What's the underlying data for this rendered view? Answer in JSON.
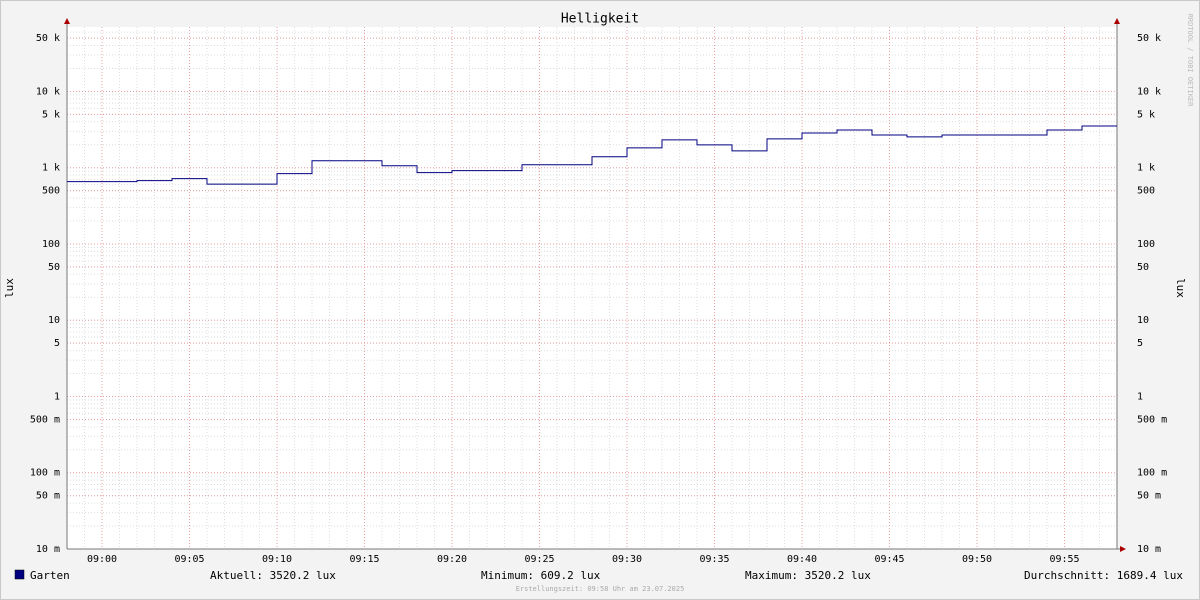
{
  "chart_data": {
    "type": "step",
    "title": "Helligkeit",
    "y_label": "lux",
    "unit": "lux",
    "watermark": "RRDTOOL / TOBI OETIKER",
    "footer": "Erstellungszeit: 09:58 Uhr am 23.07.2025",
    "x": [
      "08:58",
      "09:02",
      "09:04",
      "09:06",
      "09:10",
      "09:12",
      "09:16",
      "09:18",
      "09:20",
      "09:24",
      "09:28",
      "09:30",
      "09:32",
      "09:34",
      "09:36",
      "09:38",
      "09:40",
      "09:42",
      "09:44",
      "09:46",
      "09:48",
      "09:54",
      "09:56"
    ],
    "series": [
      {
        "name": "Garten",
        "color": "#000080",
        "values": [
          657,
          677,
          719,
          609.2,
          835,
          1233,
          1062,
          861,
          914,
          1094,
          1390,
          1821,
          2316,
          1992,
          1664,
          2385,
          2855,
          3122,
          2689,
          2533,
          2689,
          3122,
          3520.2
        ]
      }
    ],
    "xlim": [
      "08:58",
      "09:58"
    ],
    "xticks": [
      "09:00",
      "09:05",
      "09:10",
      "09:15",
      "09:20",
      "09:25",
      "09:30",
      "09:35",
      "09:40",
      "09:45",
      "09:50",
      "09:55"
    ],
    "ylim": [
      0.01,
      70000
    ],
    "log_scale": true,
    "grid": true,
    "minor_grid": true,
    "yticks": [
      {
        "value": 50000,
        "label": "50 k"
      },
      {
        "value": 10000,
        "label": "10 k"
      },
      {
        "value": 5000,
        "label": "5 k"
      },
      {
        "value": 1000,
        "label": "1 k"
      },
      500,
      100,
      50,
      10,
      5,
      1,
      {
        "value": 0.5,
        "label": "500 m"
      },
      {
        "value": 0.1,
        "label": "100 m"
      },
      {
        "value": 0.05,
        "label": "50 m"
      },
      {
        "value": 0.01,
        "label": "10 m"
      }
    ],
    "stats": [
      {
        "label": "Aktuell:",
        "value": 3520.2
      },
      {
        "label": "Minimum:",
        "value": 609.2
      },
      {
        "label": "Maximum:",
        "value": 3520.2
      },
      {
        "label": "Durchschnitt:",
        "value": 1689.4
      }
    ]
  }
}
